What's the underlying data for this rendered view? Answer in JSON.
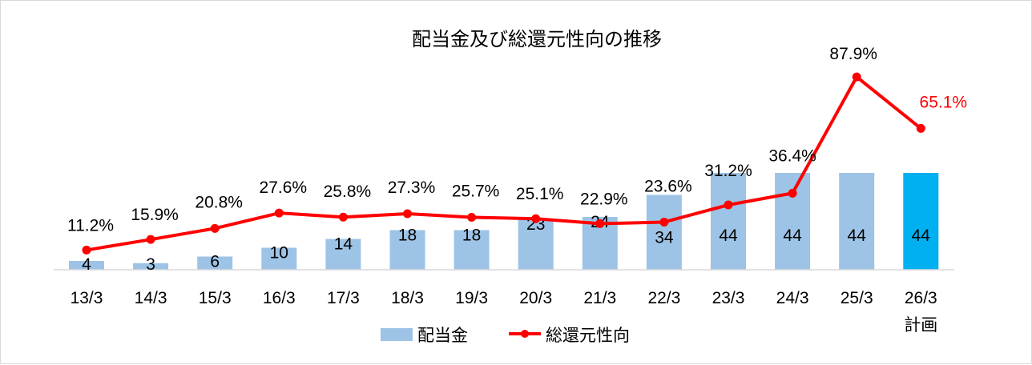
{
  "chart_data": {
    "type": "bar+line",
    "title": "配当金及び総還元性向の推移",
    "categories": [
      [
        "13/3"
      ],
      [
        "14/3"
      ],
      [
        "15/3"
      ],
      [
        "16/3"
      ],
      [
        "17/3"
      ],
      [
        "18/3"
      ],
      [
        "19/3"
      ],
      [
        "20/3"
      ],
      [
        "21/3"
      ],
      [
        "22/3"
      ],
      [
        "23/3"
      ],
      [
        "24/3"
      ],
      [
        "25/3"
      ],
      [
        "26/3",
        "計画"
      ]
    ],
    "series": [
      {
        "name": "配当金",
        "kind": "bar",
        "color": "#9dc3e6",
        "highlight_color": "#00b0f0",
        "highlight_index": 13,
        "values": [
          4,
          3,
          6,
          10,
          14,
          18,
          18,
          23,
          24,
          34,
          44,
          44,
          44,
          44
        ],
        "labels": [
          "4",
          "3",
          "6",
          "10",
          "14",
          "18",
          "18",
          "23",
          "24",
          "34",
          "44",
          "44",
          "44",
          "44"
        ]
      },
      {
        "name": "総還元性向",
        "kind": "line",
        "color": "#ff0000",
        "values": [
          11.2,
          15.9,
          20.8,
          27.6,
          25.8,
          27.3,
          25.7,
          25.1,
          22.9,
          23.6,
          31.2,
          36.4,
          87.9,
          65.1
        ],
        "labels": [
          "11.2%",
          "15.9%",
          "20.8%",
          "27.6%",
          "25.8%",
          "27.3%",
          "25.7%",
          "25.1%",
          "22.9%",
          "23.6%",
          "31.2%",
          "36.4%",
          "87.9%",
          "65.1%"
        ],
        "label_colors": [
          "#000000",
          "#000000",
          "#000000",
          "#000000",
          "#000000",
          "#000000",
          "#000000",
          "#000000",
          "#000000",
          "#000000",
          "#000000",
          "#000000",
          "#000000",
          "#ff0000"
        ]
      }
    ],
    "bar_axis_max": 44,
    "line_axis_range": [
      0,
      100
    ],
    "legend_position": "bottom",
    "grid": false
  }
}
